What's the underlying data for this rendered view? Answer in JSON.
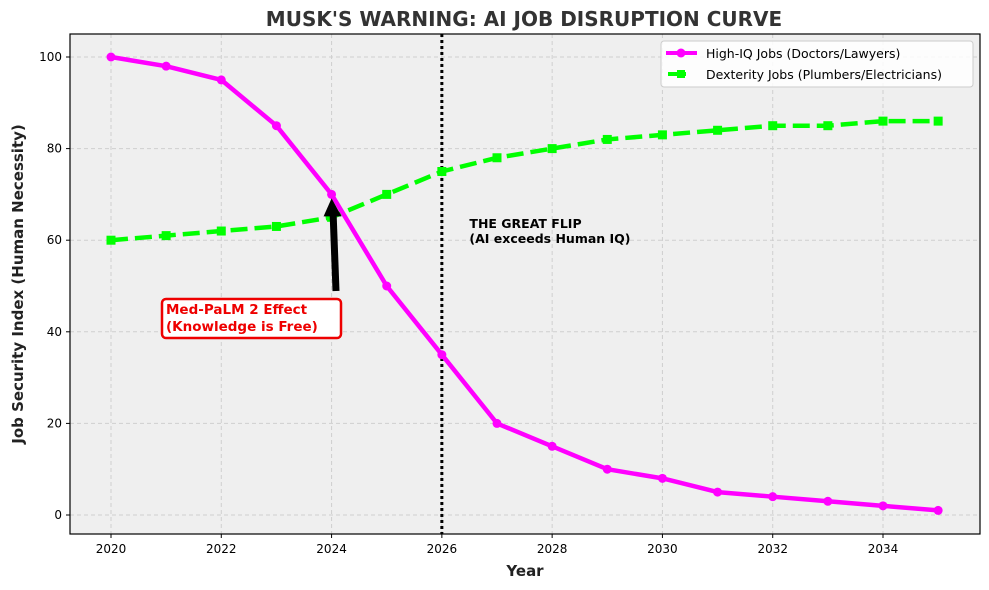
{
  "chart_data": {
    "type": "line",
    "title": "MUSK'S WARNING: AI JOB DISRUPTION CURVE",
    "xlabel": "Year",
    "ylabel": "Job Security Index (Human Necessity)",
    "x": [
      2020,
      2021,
      2022,
      2023,
      2024,
      2025,
      2026,
      2027,
      2028,
      2029,
      2030,
      2031,
      2032,
      2033,
      2034,
      2035
    ],
    "xlim": [
      2019.25,
      2035.75
    ],
    "ylim": [
      -4,
      105
    ],
    "xticks": [
      2020,
      2022,
      2024,
      2026,
      2028,
      2030,
      2032,
      2034
    ],
    "yticks": [
      0,
      20,
      40,
      60,
      80,
      100
    ],
    "grid": true,
    "legend_position": "upper right",
    "series": [
      {
        "name": "High-IQ Jobs (Doctors/Lawyers)",
        "color": "#ff00ff",
        "linestyle": "solid",
        "marker": "circle",
        "values": [
          100,
          98,
          95,
          85,
          70,
          50,
          35,
          20,
          15,
          10,
          8,
          5,
          4,
          3,
          2,
          1
        ]
      },
      {
        "name": "Dexterity Jobs (Plumbers/Electricians)",
        "color": "#00ff00",
        "linestyle": "dashed",
        "marker": "square",
        "values": [
          60,
          61,
          62,
          63,
          65,
          70,
          75,
          78,
          80,
          82,
          83,
          84,
          85,
          85,
          86,
          86
        ]
      }
    ],
    "vertical_line": {
      "x": 2026,
      "style": "dotted",
      "color": "#000000"
    },
    "annotations": [
      {
        "text_line1": "THE GREAT FLIP",
        "text_line2": "(AI exceeds Human IQ)",
        "x": 2026.5,
        "y": 62,
        "color": "#000000"
      },
      {
        "text_line1": "Med-PaLM 2 Effect",
        "text_line2": "(Knowledge is Free)",
        "x": 2021,
        "y": 42,
        "color": "#ee0000",
        "arrow_to": [
          2024,
          70
        ]
      }
    ]
  }
}
